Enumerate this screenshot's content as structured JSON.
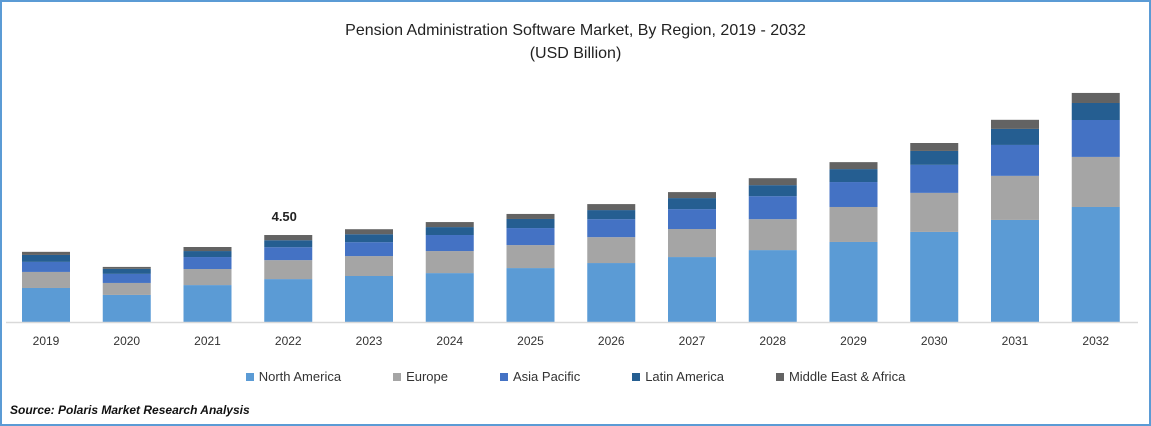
{
  "chart_data": {
    "type": "bar",
    "stacked": true,
    "title": "Pension Administration Software Market, By Region, 2019 - 2032",
    "subtitle": "(USD Billion)",
    "xlabel": "",
    "ylabel": "",
    "ylim": [
      0,
      12
    ],
    "grid": false,
    "legend_position": "bottom",
    "categories": [
      "2019",
      "2020",
      "2021",
      "2022",
      "2023",
      "2024",
      "2025",
      "2026",
      "2027",
      "2028",
      "2029",
      "2030",
      "2031",
      "2032"
    ],
    "series": [
      {
        "name": "North America",
        "color": "#5b9bd5",
        "values": [
          1.76,
          1.4,
          1.91,
          2.22,
          2.38,
          2.53,
          2.79,
          3.05,
          3.36,
          3.72,
          4.14,
          4.66,
          5.28,
          5.95
        ]
      },
      {
        "name": "Europe",
        "color": "#a5a5a5",
        "values": [
          0.83,
          0.62,
          0.83,
          0.98,
          1.03,
          1.14,
          1.19,
          1.34,
          1.45,
          1.6,
          1.81,
          2.02,
          2.28,
          2.59
        ]
      },
      {
        "name": "Asia Pacific",
        "color": "#4472c4",
        "values": [
          0.52,
          0.47,
          0.62,
          0.67,
          0.72,
          0.83,
          0.88,
          0.93,
          1.03,
          1.19,
          1.29,
          1.45,
          1.6,
          1.91
        ]
      },
      {
        "name": "Latin America",
        "color": "#255e91",
        "values": [
          0.36,
          0.26,
          0.31,
          0.36,
          0.41,
          0.41,
          0.47,
          0.47,
          0.57,
          0.57,
          0.67,
          0.72,
          0.83,
          0.88
        ]
      },
      {
        "name": "Middle East & Africa",
        "color": "#636363",
        "values": [
          0.16,
          0.1,
          0.21,
          0.27,
          0.26,
          0.26,
          0.26,
          0.31,
          0.31,
          0.36,
          0.36,
          0.41,
          0.47,
          0.52
        ]
      }
    ],
    "annotations": [
      {
        "category": "2022",
        "label": "4.50"
      }
    ]
  },
  "source": "Source: Polaris  Market Research Analysis"
}
